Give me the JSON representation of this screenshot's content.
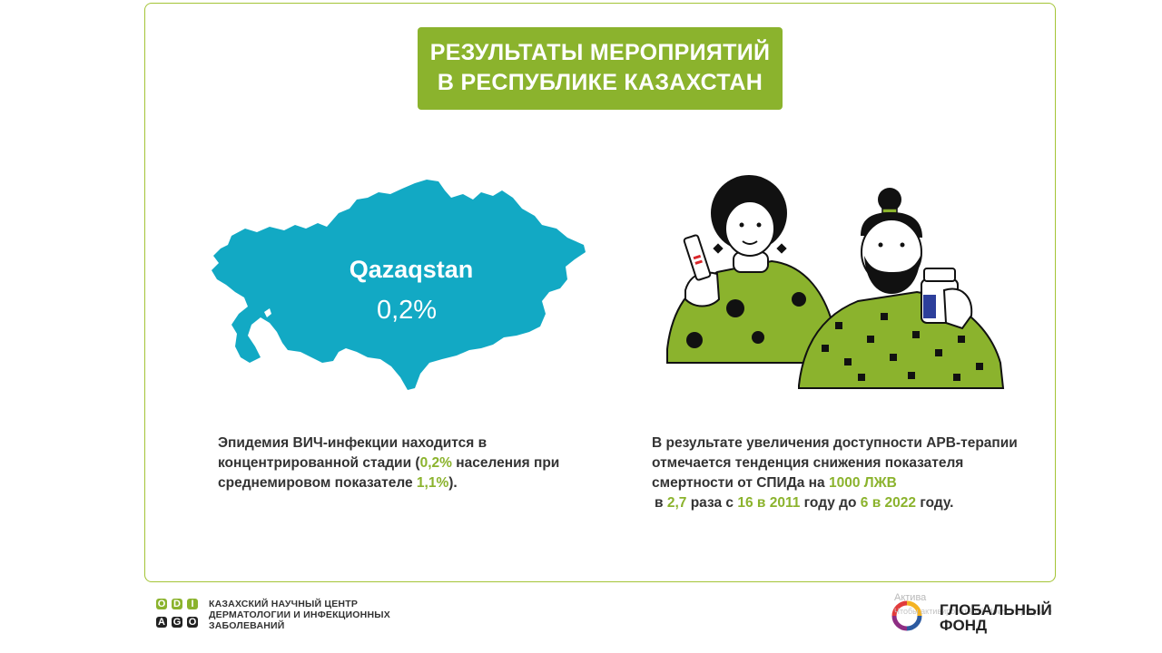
{
  "title": {
    "line1": "РЕЗУЛЬТАТЫ МЕРОПРИЯТИЙ",
    "line2": "В РЕСПУБЛИКЕ КАЗАХСТАН"
  },
  "map": {
    "name": "Qazaqstan",
    "value": "0,2%"
  },
  "left_text": {
    "part1": "Эпидемия ВИЧ-инфекции находится в концентрированной стадии (",
    "hl1": "0,2%",
    "part2": " населения при среднемировом показателе ",
    "hl2": "1,1%",
    "part3": ")."
  },
  "right_text": {
    "part1": "В результате увеличения доступности АРВ-терапии отмечается тенденция снижения показателя смертности от СПИДа на ",
    "hl1": "1000 ЛЖВ",
    "part2": "в ",
    "hl2": "2,7",
    "part3": " раза с ",
    "hl3": "16 в 2011",
    "part4": " году до ",
    "hl4": "6 в 2022",
    "part5": " году."
  },
  "footer": {
    "logo_letters": [
      "O",
      "D",
      "I",
      "A",
      "G",
      "O"
    ],
    "org_name": "КАЗАХСКИЙ НАУЧНЫЙ ЦЕНТР ДЕРМАТОЛОГИИ И ИНФЕКЦИОННЫХ ЗАБОЛЕВАНИЙ",
    "fund_line1": "ГЛОБАЛЬНЫЙ",
    "fund_line2": "ФОНД",
    "watermark1": "Актива",
    "watermark2": "Чтобы активировать Windows, перейдите"
  },
  "colors": {
    "accent_green": "#8bb32d",
    "map_teal": "#12a9c4",
    "border_green": "#a4c436"
  }
}
